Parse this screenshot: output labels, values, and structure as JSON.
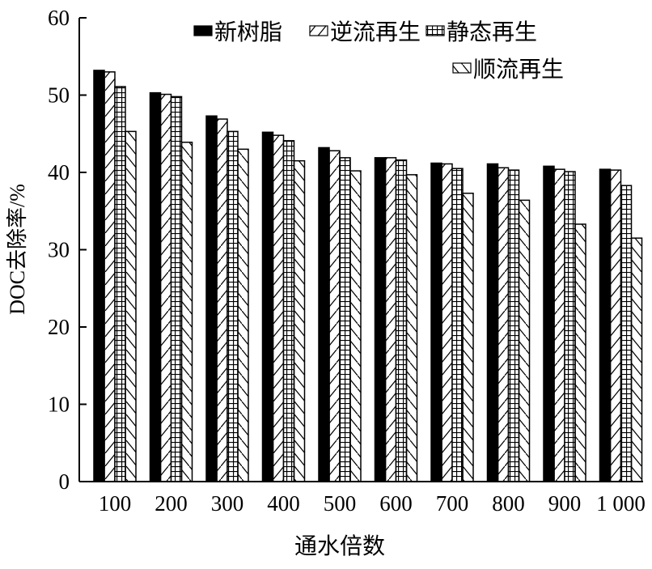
{
  "chart_data": {
    "type": "bar",
    "xlabel": "通水倍数",
    "ylabel": "DOC去除率/%",
    "ylim": [
      0,
      60
    ],
    "yticks": [
      "0",
      "10",
      "20",
      "30",
      "40",
      "50",
      "60"
    ],
    "categories": [
      "100",
      "200",
      "300",
      "400",
      "500",
      "600",
      "700",
      "800",
      "900",
      "1 000"
    ],
    "legend_position": "top-right",
    "grid": false,
    "series": [
      {
        "name": "新树脂",
        "pattern": "solid-black",
        "values": [
          53.2,
          50.3,
          47.3,
          45.2,
          43.2,
          41.9,
          41.2,
          41.1,
          40.8,
          40.4
        ]
      },
      {
        "name": "逆流再生",
        "pattern": "forward-diagonal",
        "values": [
          53.0,
          50.1,
          46.9,
          44.8,
          42.8,
          41.9,
          41.1,
          40.6,
          40.4,
          40.3
        ]
      },
      {
        "name": "静态再生",
        "pattern": "grid",
        "values": [
          51.1,
          49.8,
          45.3,
          44.1,
          41.9,
          41.6,
          40.5,
          40.3,
          40.1,
          38.3
        ]
      },
      {
        "name": "顺流再生",
        "pattern": "back-diagonal",
        "values": [
          45.3,
          43.9,
          43.0,
          41.5,
          40.2,
          39.7,
          37.3,
          36.4,
          33.3,
          31.5
        ]
      }
    ]
  }
}
